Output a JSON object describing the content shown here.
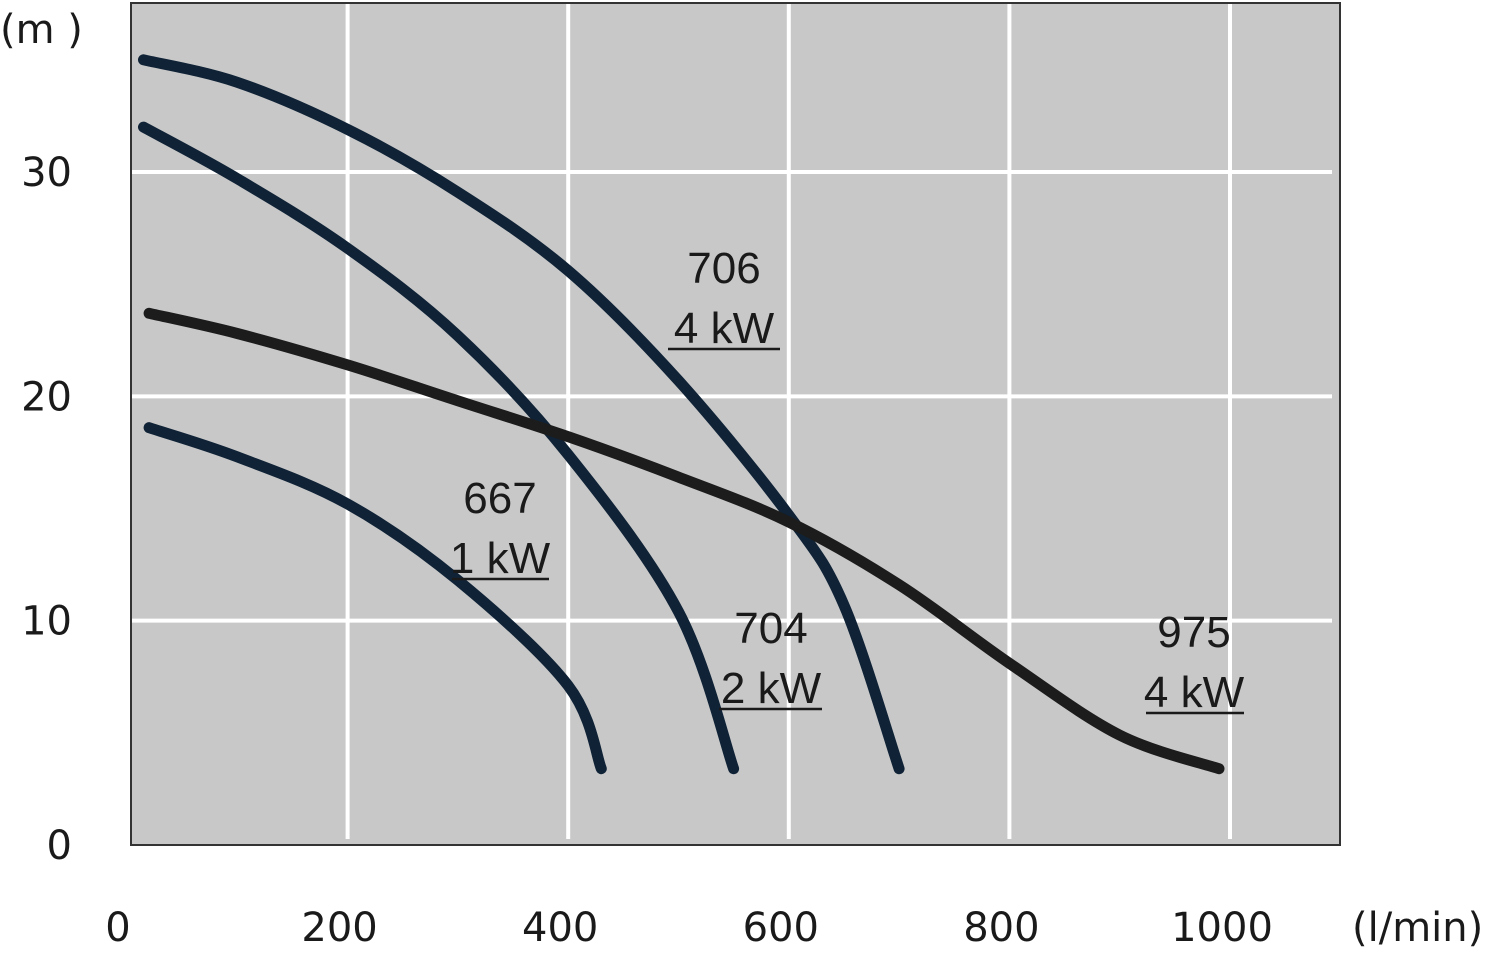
{
  "chart_data": {
    "type": "line",
    "title": "",
    "xlabel": "(l/min)",
    "ylabel": "(m )",
    "xlim": [
      0,
      1100
    ],
    "ylim": [
      0,
      38
    ],
    "x_ticks": [
      "0",
      "200",
      "400",
      "600",
      "800",
      "1000"
    ],
    "y_ticks": [
      "0",
      "10",
      "20",
      "30"
    ],
    "grid": true,
    "colors": {
      "background": "#c8c8c8",
      "grid": "#ffffff",
      "navy": "#0f2236",
      "black": "#1c1c1c"
    },
    "series": [
      {
        "name_line1": "667",
        "name_line2": "1 kW",
        "color": "#0f2236",
        "points": [
          [
            20,
            18.6
          ],
          [
            100,
            17.3
          ],
          [
            200,
            15.2
          ],
          [
            300,
            11.8
          ],
          [
            400,
            7.1
          ],
          [
            430,
            3.4
          ]
        ]
      },
      {
        "name_line1": "704",
        "name_line2": "2 kW",
        "color": "#0f2236",
        "points": [
          [
            15,
            32.0
          ],
          [
            100,
            29.7
          ],
          [
            200,
            26.6
          ],
          [
            300,
            22.7
          ],
          [
            400,
            17.4
          ],
          [
            500,
            10.4
          ],
          [
            550,
            3.4
          ]
        ]
      },
      {
        "name_line1": "706",
        "name_line2": "4 kW",
        "color": "#0f2236",
        "points": [
          [
            15,
            35.0
          ],
          [
            100,
            34.0
          ],
          [
            200,
            31.9
          ],
          [
            300,
            29.1
          ],
          [
            400,
            25.6
          ],
          [
            500,
            20.7
          ],
          [
            600,
            14.7
          ],
          [
            650,
            10.7
          ],
          [
            700,
            3.4
          ]
        ]
      },
      {
        "name_line1": "975",
        "name_line2": "4 kW",
        "color": "#1c1c1c",
        "points": [
          [
            20,
            23.7
          ],
          [
            100,
            22.8
          ],
          [
            200,
            21.4
          ],
          [
            300,
            19.8
          ],
          [
            400,
            18.2
          ],
          [
            500,
            16.4
          ],
          [
            600,
            14.4
          ],
          [
            700,
            11.6
          ],
          [
            800,
            8.1
          ],
          [
            900,
            4.9
          ],
          [
            990,
            3.4
          ]
        ]
      }
    ]
  }
}
